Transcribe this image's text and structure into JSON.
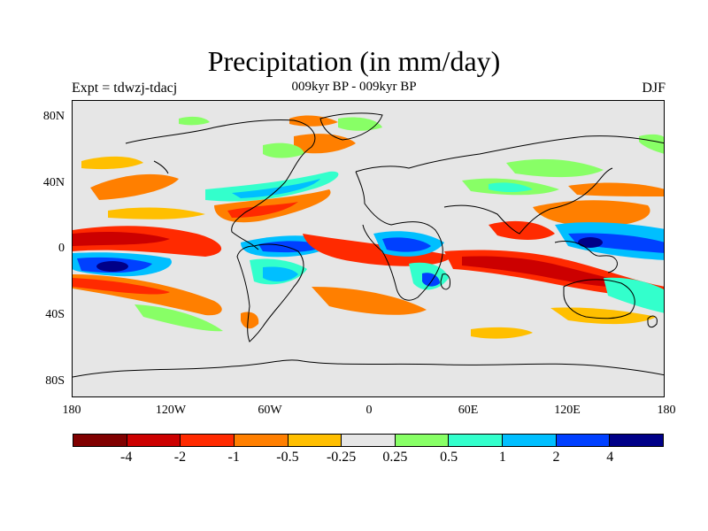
{
  "title": "Precipitation (in mm/day)",
  "subtitle": "009kyr BP - 009kyr BP",
  "left_label": "Expt = tdwzj-tdacj",
  "right_label": "DJF",
  "map": {
    "lat_ticks": [
      "80N",
      "40N",
      "0",
      "40S",
      "80S"
    ],
    "lon_ticks": [
      "180",
      "120W",
      "60W",
      "0",
      "60E",
      "120E",
      "180"
    ],
    "ocean_color": "#e6e6e6",
    "land_outline_color": "#000000"
  },
  "colorbar": {
    "colors": [
      "#800000",
      "#cc0000",
      "#ff2a00",
      "#ff7f00",
      "#ffbf00",
      "#e6e6e6",
      "#88ff66",
      "#33ffcc",
      "#00bfff",
      "#0040ff",
      "#000088"
    ],
    "labels": [
      "-4",
      "-2",
      "-1",
      "-0.5",
      "-0.25",
      "0.25",
      "0.5",
      "1",
      "2",
      "4"
    ]
  }
}
